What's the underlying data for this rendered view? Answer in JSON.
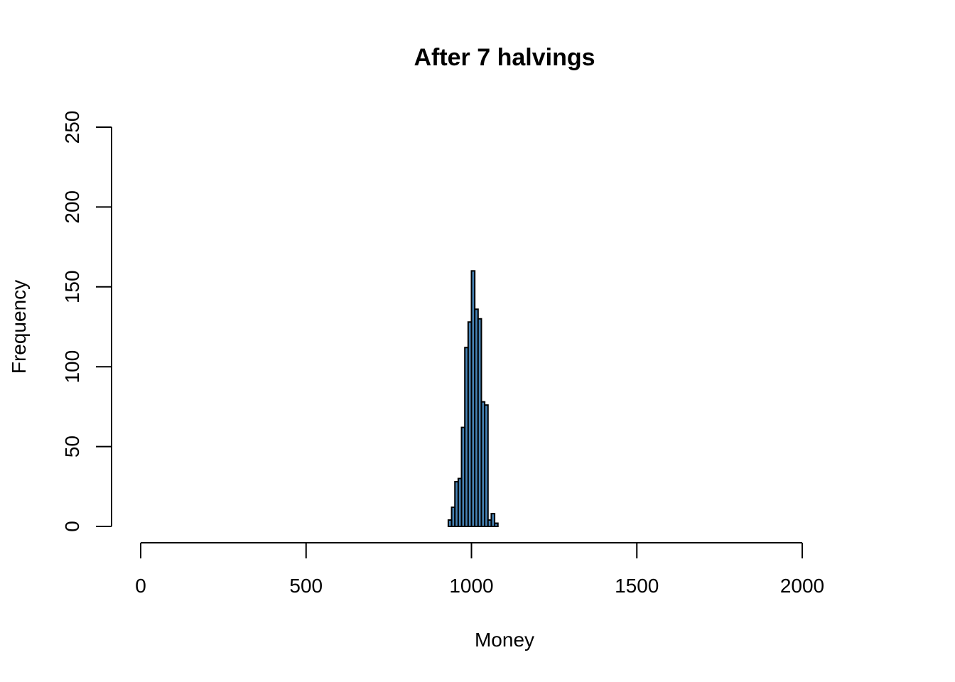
{
  "chart_data": {
    "type": "bar",
    "title": "After 7 halvings",
    "xlabel": "Money",
    "ylabel": "Frequency",
    "xlim": [
      0,
      2000
    ],
    "ylim": [
      0,
      250
    ],
    "xticks": [
      0,
      500,
      1000,
      1500,
      2000
    ],
    "yticks": [
      0,
      50,
      100,
      150,
      200,
      250
    ],
    "bar_color": "#4682B4",
    "bin_width": 10,
    "grid": false,
    "legend": "none",
    "bins": [
      {
        "x0": 930,
        "x1": 940,
        "count": 4
      },
      {
        "x0": 940,
        "x1": 950,
        "count": 12
      },
      {
        "x0": 950,
        "x1": 960,
        "count": 28
      },
      {
        "x0": 960,
        "x1": 970,
        "count": 30
      },
      {
        "x0": 970,
        "x1": 980,
        "count": 62
      },
      {
        "x0": 980,
        "x1": 990,
        "count": 112
      },
      {
        "x0": 990,
        "x1": 1000,
        "count": 128
      },
      {
        "x0": 1000,
        "x1": 1010,
        "count": 160
      },
      {
        "x0": 1010,
        "x1": 1020,
        "count": 136
      },
      {
        "x0": 1020,
        "x1": 1030,
        "count": 130
      },
      {
        "x0": 1030,
        "x1": 1040,
        "count": 78
      },
      {
        "x0": 1040,
        "x1": 1050,
        "count": 76
      },
      {
        "x0": 1050,
        "x1": 1060,
        "count": 4
      },
      {
        "x0": 1060,
        "x1": 1070,
        "count": 8
      },
      {
        "x0": 1070,
        "x1": 1080,
        "count": 2
      }
    ]
  }
}
